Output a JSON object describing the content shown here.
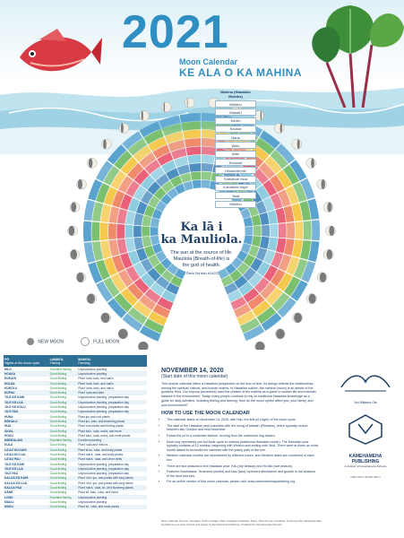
{
  "header": {
    "year": "2021",
    "subtitle": "Moon Calendar",
    "hawaiian_title": "KE ALA O KA MAHINA"
  },
  "wheel": {
    "phase_header": "Mahina (Hawaiian Months)",
    "phase_tags": [
      "Welehu",
      "Makali'i",
      "Kā'elo",
      "Kaulua",
      "Nana",
      "Welo",
      "Ikiiki",
      "Ka'aona",
      "Hinaia'ele'ele",
      "Kamahoe mua",
      "Kamahoe hope",
      "'Ikuā",
      "Welehu"
    ],
    "center_title": "Ka lā i\nka Mauliola.",
    "center_body": "The sun at the source of life.\nMauliola (Breath-of-life) is\nthe god of health.",
    "center_cite": "('Ōlelo No'eau #1422)",
    "ring_colors": [
      "#5aa3cf",
      "#7ac06f",
      "#f4c94e",
      "#ef8b6a",
      "#e9627a",
      "#8ecde0",
      "#4d8fc0",
      "#7ac06f",
      "#5aa3cf"
    ]
  },
  "legend": {
    "new_moon": "NEW MOON",
    "full_moon": "FULL MOON"
  },
  "table": {
    "headers": [
      "PŌ",
      "LAWAI'A",
      "MAHI'AI"
    ],
    "subheaders": [
      "Nights of the moon cycle",
      "Fishing",
      "Farming"
    ],
    "rows": [
      [
        "HILO",
        "Excellent fishing",
        "Unproductive planting"
      ],
      [
        "HOAKA",
        "Good fishing",
        "Unproductive planting"
      ],
      [
        "KŪKAHI",
        "Good fishing",
        "Plant 'uala, kalo, and mai'a"
      ],
      [
        "KŪLUA",
        "Good fishing",
        "Plant 'uala, kalo, and mai'a"
      ],
      [
        "KŪKOLU",
        "Good fishing",
        "Plant 'uala, kalo, and mai'a"
      ],
      [
        "KŪPAU",
        "Good fishing",
        "Plant 'uala and kalo"
      ],
      [
        "'OLE KŪ KAHI",
        "Good fishing",
        "Unproductive planting, preparation day"
      ],
      [
        "'OLE KŪ LUA",
        "Good fishing",
        "Unproductive planting, preparation day"
      ],
      [
        "'OLE KŪ KOLU",
        "Good fishing",
        "Unproductive planting, preparation day"
      ],
      [
        "'OLE PAU",
        "Good fishing",
        "Unproductive planting, preparation day"
      ],
      [
        "HUNA",
        "Good fishing",
        "Plant ipu and root plants"
      ],
      [
        "MŌHALU",
        "Good fishing",
        "Plant ipu, kalo, and flowering plants"
      ],
      [
        "HUA",
        "Good fishing",
        "Plant root plants and fruiting plants"
      ],
      [
        "AKUA",
        "Good fishing",
        "Plant kalo, 'uala, mai'a, and more"
      ],
      [
        "HOKU",
        "Good fishing",
        "Plant kalo, 'uala, mai'a, and most plants"
      ],
      [
        "MĀHEALANI",
        "Excellent fishing",
        "Excellent planting"
      ],
      [
        "KULU",
        "Good fishing",
        "Plant 'uala and melons"
      ],
      [
        "LĀ'AU KŪ KAHI",
        "Good fishing",
        "Plant la'au, 'uala, and leafy plants"
      ],
      [
        "LĀ'AU KŪ LUA",
        "Good fishing",
        "Plant mai'a, 'uala, and leafy plants"
      ],
      [
        "LĀ'AU PAU",
        "Good fishing",
        "Plant mai'a, 'uala, and other trees"
      ],
      [
        "'OLE KŪ KAHI",
        "Good fishing",
        "Unproductive planting, preparation day"
      ],
      [
        "'OLE KŪ LUA",
        "Good fishing",
        "Unproductive planting, preparation day"
      ],
      [
        "'OLE PAU",
        "Good fishing",
        "Unproductive planting, preparation day"
      ],
      [
        "KALOA KŪ KAHI",
        "Good fishing",
        "Plant 'ohe, ipu, and plants with long stems"
      ],
      [
        "KALOA KŪ LUA",
        "Good fishing",
        "Plant 'ohe, ipu, and plants with long stems"
      ],
      [
        "KALOA PAU",
        "Good fishing",
        "Plant mai'a, 'uala, kō, and flowering plants"
      ],
      [
        "KĀNE",
        "Good fishing",
        "Plant kō, kalo, 'uala, and mai'a"
      ],
      [
        "LONO",
        "Excellent fishing",
        "Unproductive planting"
      ],
      [
        "MAULI",
        "Good fishing",
        "Unproductive planting"
      ],
      [
        "MUKU",
        "Good fishing",
        "Plant kō, 'uala, and most plants"
      ]
    ]
  },
  "info": {
    "date": "NOVEMBER 14, 2020",
    "date_sub": "(Start date of this moon calendar)",
    "para1": "This circular calendar offers a Hawaiian perspective on the flow of time. Its design reflects the relationships among the spiritual, natural, and human realms. In Hawaiian culture, the mahina (moon) is an abode of the goddess Hina. Our kūpuna (ancestors) used the phases of the mahina as a guide to sustain life and maintain balance in the environment. Today, many people continue to rely on traditional Hawaiian knowledge as a guide for daily activities, including fishing and farming. How do the moon cycles affect you, your family, and your environment?",
    "howto": "HOW TO USE THE MOON CALENDAR",
    "bullets": [
      "This calendar starts on November 14, 2020, with Hilo, the first pō (night) of the moon cycle.",
      "The start of the Hawaiian year coincides with the rising of Makali'i (Pleiades), which typically occurs between late October and mid-November.",
      "Follow the pō in a clockwise fashion, moving from the outermost ring inward.",
      "Each ring represents one full lunar cycle or mahina (traditional Hawaiian month). The Hawaiian year typically consists of 12 mahina, beginning with Welehu and ending with 'Ikuā. There were at times an extra month added to reconcile the calendar with the yearly path of the sun.",
      "Western calendar months are represented by different colors, and Western dates are numbered in each box.",
      "There are two seasons in the Hawaiian year: Kau (dry season) and Ho'oilo (wet season).",
      "Featured illustrations: 'Ama'ama (mullet) and kalo (taro) represent abundance and growth in the seasons of the land and sea.",
      "For an online version of this moon calendar, please visit: www.kamehamehapublishing.org"
    ],
    "credits": "Moon Calendar Sources: Kamakau, Ka Po'e Kahiko; Malo, Hawaiian Antiquities; Pukui, 'Ōlelo No'eau; Kanahele, Ka Honua Ola; Kalokuokamaile, Ka Mahina a me Hina. Artwork and design by Kamehameha Publishing. Published by Kamehameha Schools."
  },
  "sidebar": {
    "logo_caption": "Hui Mālama Ola",
    "pub_name": "KAMEHAMEHA\nPUBLISHING",
    "pub_sub": "A division of Kamehameha Schools",
    "isbn": "ISBN 978-0-87336-396-0"
  }
}
